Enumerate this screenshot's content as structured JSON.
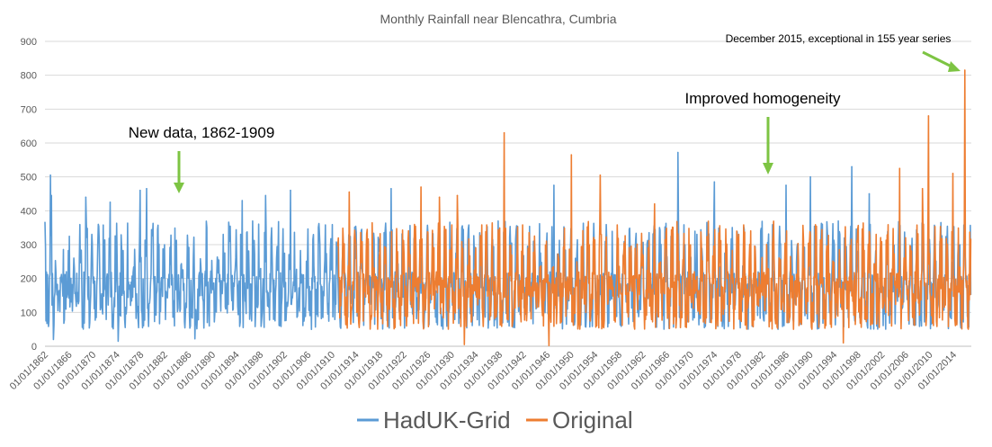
{
  "chart_data": {
    "type": "line",
    "title": "Monthly Rainfall near Blencathra, Cumbria",
    "xlabel": "",
    "ylabel": "",
    "ylim": [
      0,
      900
    ],
    "yticks": [
      0,
      100,
      200,
      300,
      400,
      500,
      600,
      700,
      800,
      900
    ],
    "xticks": [
      "01/01/1862",
      "01/01/1866",
      "01/01/1870",
      "01/01/1874",
      "01/01/1878",
      "01/01/1882",
      "01/01/1886",
      "01/01/1890",
      "01/01/1894",
      "01/01/1898",
      "01/01/1902",
      "01/01/1906",
      "01/01/1910",
      "01/01/1914",
      "01/01/1918",
      "01/01/1922",
      "01/01/1926",
      "01/01/1930",
      "01/01/1934",
      "01/01/1938",
      "01/01/1942",
      "01/01/1946",
      "01/01/1950",
      "01/01/1954",
      "01/01/1958",
      "01/01/1962",
      "01/01/1966",
      "01/01/1970",
      "01/01/1974",
      "01/01/1978",
      "01/01/1982",
      "01/01/1986",
      "01/01/1990",
      "01/01/1994",
      "01/01/1998",
      "01/01/2002",
      "01/01/2006",
      "01/01/2010",
      "01/01/2014"
    ],
    "x_range": [
      "1862-01",
      "2016-12"
    ],
    "grid": true,
    "legend_position": "bottom",
    "series": [
      {
        "name": "HadUK-Grid",
        "color": "#5B9BD5",
        "x_range": [
          "1862-01",
          "2016-12"
        ],
        "peaks": [
          {
            "x": "1862-12",
            "y": 505
          },
          {
            "x": "1863-02",
            "y": 445
          },
          {
            "x": "1868-11",
            "y": 440
          },
          {
            "x": "1872-12",
            "y": 425
          },
          {
            "x": "1877-12",
            "y": 460
          },
          {
            "x": "1879-01",
            "y": 465
          },
          {
            "x": "1895-01",
            "y": 430
          },
          {
            "x": "1898-12",
            "y": 445
          },
          {
            "x": "1903-02",
            "y": 460
          },
          {
            "x": "1919-12",
            "y": 465
          },
          {
            "x": "1947-03",
            "y": 475
          },
          {
            "x": "1967-12",
            "y": 572
          },
          {
            "x": "1974-01",
            "y": 485
          },
          {
            "x": "1986-01",
            "y": 475
          },
          {
            "x": "1990-02",
            "y": 500
          },
          {
            "x": "1997-01",
            "y": 530
          },
          {
            "x": "1999-12",
            "y": 450
          }
        ],
        "low_sample": [
          {
            "x": "1863-06",
            "y": 20
          },
          {
            "x": "1874-04",
            "y": 15
          },
          {
            "x": "1887-02",
            "y": 22
          }
        ]
      },
      {
        "name": "Original",
        "color": "#ED7D31",
        "x_range": [
          "1911-01",
          "2016-12"
        ],
        "peaks": [
          {
            "x": "1912-12",
            "y": 455
          },
          {
            "x": "1924-12",
            "y": 470
          },
          {
            "x": "1928-01",
            "y": 440
          },
          {
            "x": "1931-01",
            "y": 445
          },
          {
            "x": "1938-11",
            "y": 630
          },
          {
            "x": "1950-02",
            "y": 565
          },
          {
            "x": "1954-12",
            "y": 505
          },
          {
            "x": "1964-01",
            "y": 420
          },
          {
            "x": "2005-01",
            "y": 525
          },
          {
            "x": "2008-11",
            "y": 465
          },
          {
            "x": "2009-11",
            "y": 680
          },
          {
            "x": "2013-12",
            "y": 510
          },
          {
            "x": "2015-12",
            "y": 815
          }
        ],
        "low_sample": [
          {
            "x": "1932-03",
            "y": 5
          },
          {
            "x": "1946-05",
            "y": 2
          },
          {
            "x": "1995-08",
            "y": 10
          }
        ]
      }
    ],
    "annotations": [
      {
        "text": "New data, 1862-1909",
        "x": "1884-06"
      },
      {
        "text": "Improved homogeneity",
        "x": "1981-06"
      },
      {
        "text": "December 2015, exceptional in 155 year series",
        "x": "2015-12"
      }
    ]
  }
}
